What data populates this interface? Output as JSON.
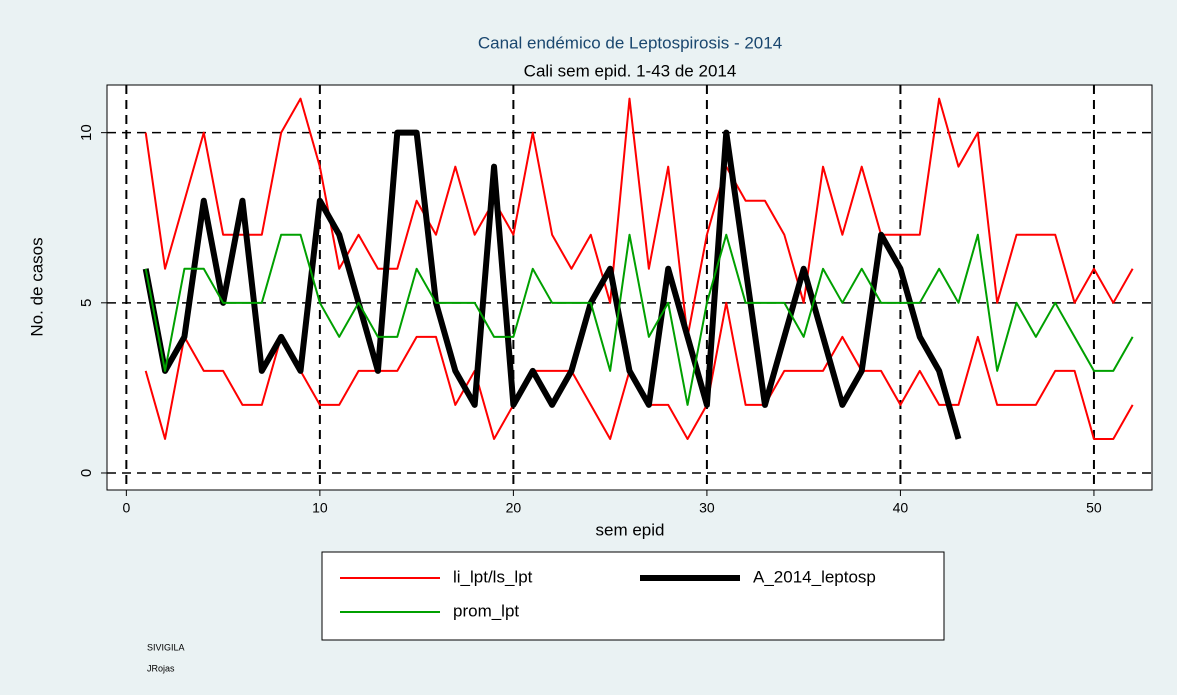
{
  "chart_data": {
    "type": "line",
    "title": "Canal endémico de Leptospirosis - 2014",
    "subtitle": "Cali sem epid. 1-43 de 2014",
    "x_label": "sem epid",
    "y_label": "No. de casos",
    "x": [
      1,
      2,
      3,
      4,
      5,
      6,
      7,
      8,
      9,
      10,
      11,
      12,
      13,
      14,
      15,
      16,
      17,
      18,
      19,
      20,
      21,
      22,
      23,
      24,
      25,
      26,
      27,
      28,
      29,
      30,
      31,
      32,
      33,
      34,
      35,
      36,
      37,
      38,
      39,
      40,
      41,
      42,
      43,
      44,
      45,
      46,
      47,
      48,
      49,
      50,
      51,
      52
    ],
    "series": [
      {
        "name": "li_lpt/ls_lpt",
        "color": "#ff0000",
        "width": 2,
        "lower": [
          3,
          1,
          4,
          3,
          3,
          2,
          2,
          4,
          3,
          2,
          2,
          3,
          3,
          3,
          4,
          4,
          2,
          3,
          1,
          2,
          3,
          3,
          3,
          2,
          1,
          3,
          2,
          2,
          1,
          2,
          5,
          2,
          2,
          3,
          3,
          3,
          4,
          3,
          3,
          2,
          3,
          2,
          2,
          4,
          2,
          2,
          2,
          3,
          3,
          1,
          1,
          2
        ],
        "upper": [
          10,
          6,
          8,
          10,
          7,
          7,
          7,
          10,
          11,
          9,
          6,
          7,
          6,
          6,
          8,
          7,
          9,
          7,
          8,
          7,
          10,
          7,
          6,
          7,
          5,
          11,
          6,
          9,
          4,
          7,
          9,
          8,
          8,
          7,
          5,
          9,
          7,
          9,
          7,
          7,
          7,
          11,
          9,
          10,
          5,
          7,
          7,
          7,
          5,
          6,
          5,
          6
        ]
      },
      {
        "name": "A_2014_leptosp",
        "color": "#000000",
        "width": 6,
        "values": [
          6,
          3,
          4,
          8,
          5,
          8,
          3,
          4,
          3,
          8,
          7,
          5,
          3,
          10,
          10,
          5,
          3,
          2,
          9,
          2,
          3,
          2,
          3,
          5,
          6,
          3,
          2,
          6,
          4,
          2,
          10,
          6,
          2,
          4,
          6,
          4,
          2,
          3,
          7,
          6,
          4,
          3,
          1,
          null,
          null,
          null,
          null,
          null,
          null,
          null,
          null,
          null
        ]
      },
      {
        "name": "prom_lpt",
        "color": "#00a000",
        "width": 2,
        "values": [
          6,
          3,
          6,
          6,
          5,
          5,
          5,
          7,
          7,
          5,
          4,
          5,
          4,
          4,
          6,
          5,
          5,
          5,
          4,
          4,
          6,
          5,
          5,
          5,
          3,
          7,
          4,
          5,
          2,
          5,
          7,
          5,
          5,
          5,
          4,
          6,
          5,
          6,
          5,
          5,
          5,
          6,
          5,
          7,
          3,
          5,
          4,
          5,
          4,
          3,
          3,
          4
        ]
      }
    ],
    "xlim": [
      -1,
      53
    ],
    "xticks": [
      0,
      10,
      20,
      30,
      40,
      50
    ],
    "ylim": [
      -0.5,
      11.4
    ],
    "yticks": [
      0,
      5,
      10
    ],
    "grid": true,
    "legend": "bottom",
    "notes": [
      "SIVIGILA",
      "JRojas"
    ]
  }
}
